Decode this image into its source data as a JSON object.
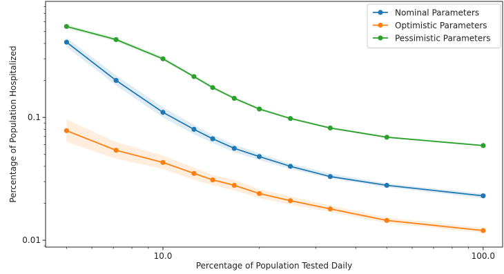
{
  "chart_data": {
    "type": "line",
    "title": "",
    "xlabel": "Percentage of Population Tested Daily",
    "ylabel": "Percentage of Population Hospitalized",
    "x_scale": "log",
    "y_scale": "log",
    "xlim": [
      4.3,
      115
    ],
    "ylim": [
      0.0088,
      0.88
    ],
    "x_ticks": [
      {
        "value": 10,
        "label": "10.0"
      },
      {
        "value": 100,
        "label": "100.0"
      }
    ],
    "y_ticks": [
      {
        "value": 0.01,
        "label": "0.01"
      },
      {
        "value": 0.1,
        "label": "0.1"
      }
    ],
    "grid": false,
    "legend_position": "top-right",
    "x": [
      5,
      7.14,
      10,
      12.5,
      14.3,
      16.7,
      20,
      25,
      33.3,
      50,
      100
    ],
    "series": [
      {
        "name": "Nominal Parameters",
        "color": "#1f77b4",
        "values": [
          0.41,
          0.2,
          0.11,
          0.08,
          0.067,
          0.056,
          0.048,
          0.04,
          0.033,
          0.028,
          0.023
        ],
        "band_lower": [
          0.375,
          0.182,
          0.1,
          0.073,
          0.062,
          0.052,
          0.045,
          0.038,
          0.032,
          0.027,
          0.022
        ],
        "band_upper": [
          0.445,
          0.22,
          0.121,
          0.087,
          0.072,
          0.06,
          0.051,
          0.042,
          0.035,
          0.029,
          0.024
        ]
      },
      {
        "name": "Optimistic Parameters",
        "color": "#ff7f0e",
        "values": [
          0.078,
          0.054,
          0.043,
          0.035,
          0.031,
          0.028,
          0.024,
          0.021,
          0.018,
          0.0145,
          0.012
        ],
        "band_lower": [
          0.063,
          0.046,
          0.038,
          0.031,
          0.028,
          0.0255,
          0.022,
          0.0195,
          0.017,
          0.0138,
          0.0115
        ],
        "band_upper": [
          0.096,
          0.063,
          0.049,
          0.039,
          0.034,
          0.031,
          0.026,
          0.0227,
          0.0192,
          0.0153,
          0.0126
        ]
      },
      {
        "name": "Pessimistic Parameters",
        "color": "#2ca02c",
        "values": [
          0.55,
          0.43,
          0.3,
          0.215,
          0.175,
          0.143,
          0.117,
          0.098,
          0.082,
          0.069,
          0.059
        ],
        "band_lower": [
          0.53,
          0.415,
          0.29,
          0.208,
          0.17,
          0.139,
          0.114,
          0.096,
          0.0805,
          0.068,
          0.058
        ],
        "band_upper": [
          0.57,
          0.445,
          0.31,
          0.222,
          0.18,
          0.147,
          0.12,
          0.1,
          0.0835,
          0.0702,
          0.06
        ]
      }
    ]
  }
}
